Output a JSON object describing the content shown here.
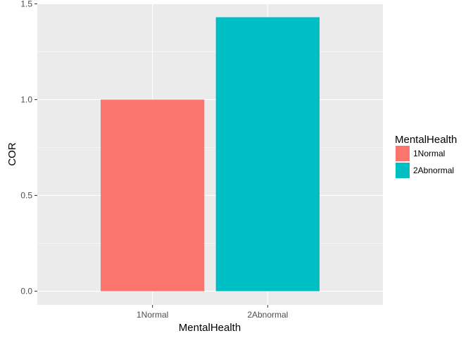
{
  "chart_data": {
    "type": "bar",
    "categories": [
      "1Normal",
      "2Abnormal"
    ],
    "values": [
      1.0,
      1.43
    ],
    "title": "",
    "xlabel": "MentalHealth",
    "ylabel": "COR",
    "ylim": [
      -0.0715,
      1.5015
    ],
    "yticks": [
      0.0,
      0.5,
      1.0,
      1.5
    ],
    "ytick_labels": [
      "0.0",
      "0.5",
      "1.0",
      "1.5"
    ],
    "grid": true,
    "panel_background": "#ebebeb",
    "legend": {
      "title": "MentalHealth",
      "position": "right",
      "entries": [
        "1Normal",
        "2Abnormal"
      ]
    },
    "colors": [
      "#f8766d",
      "#00bfc4"
    ]
  }
}
